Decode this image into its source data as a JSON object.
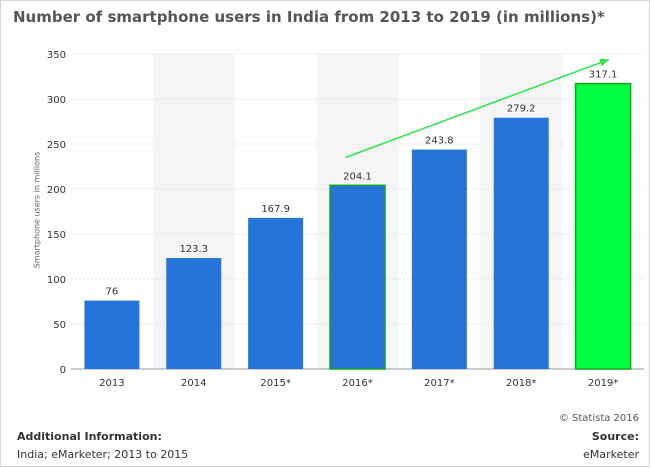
{
  "chart_data": {
    "type": "bar",
    "title": "Number of smartphone users in India from 2013 to 2019 (in millions)*",
    "ylabel": "Smartphone users in millions",
    "xlabel": "",
    "categories": [
      "2013",
      "2014",
      "2015*",
      "2016*",
      "2017*",
      "2018*",
      "2019*"
    ],
    "values": [
      76,
      123.3,
      167.9,
      204.1,
      243.8,
      279.2,
      317.1
    ],
    "value_labels": [
      "76",
      "123.3",
      "167.9",
      "204.1",
      "243.8",
      "279.2",
      "317.1"
    ],
    "ylim": [
      0,
      350
    ],
    "yticks": [
      0,
      50,
      100,
      150,
      200,
      250,
      300,
      350
    ],
    "grid": true,
    "legend": "none",
    "colors": {
      "bar": "#2574d9",
      "highlight_bar": "#00ff3f",
      "highlight_border": "#12a41f",
      "arrow": "#2ce64a",
      "band": "#f5f5f5"
    },
    "highlighted_index": 6,
    "outlined_index": 3,
    "annotation": {
      "type": "trend-arrow",
      "from": {
        "x": "2016*",
        "y": 235
      },
      "to": {
        "x": "2019*",
        "y": 344
      }
    }
  },
  "footer": {
    "copyright": "© Statista 2016",
    "additional_info_title": "Additional Information:",
    "additional_info_text": "India; eMarketer; 2013 to 2015",
    "source_title": "Source:",
    "source_text": "eMarketer"
  }
}
